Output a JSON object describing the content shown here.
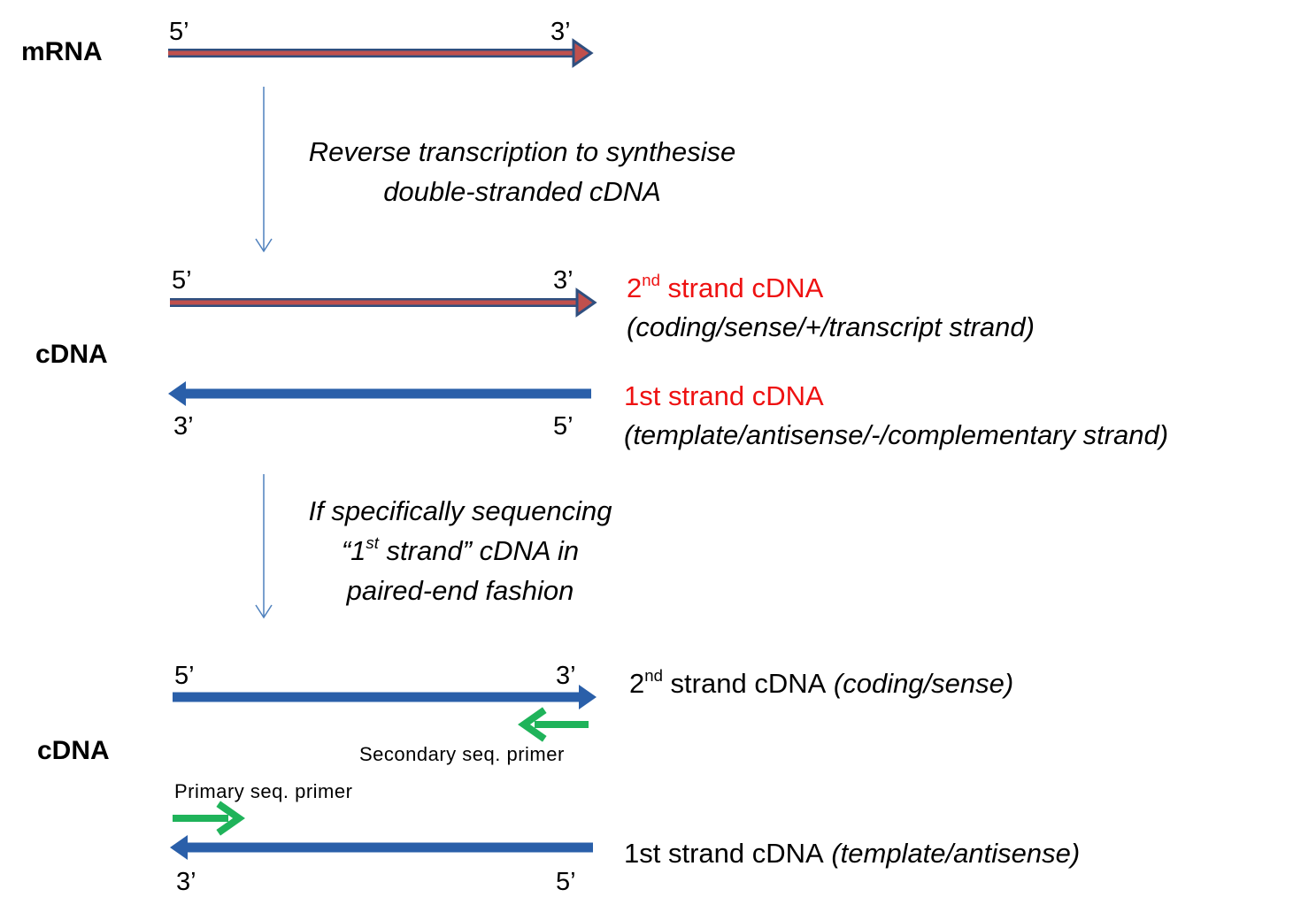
{
  "colors": {
    "strand_blue": "#2a5fa9",
    "strand_outline": "#2f4f7f",
    "mrna_red": "#c0504d",
    "step_arrow": "#4f81bd",
    "primer_green": "#1fb35a",
    "label_red": "#ee1111"
  },
  "labels": {
    "mrna": "mRNA",
    "cdna_1": "cDNA",
    "cdna_2": "cDNA"
  },
  "ends": {
    "five": "5’",
    "three": "3’"
  },
  "steps": {
    "step1_line1": "Reverse transcription to synthesise",
    "step1_line2": "double-stranded cDNA",
    "step2_line1": "If specifically sequencing",
    "step2_line2_pre": "“1",
    "step2_line2_sup": "st",
    "step2_line2_post": " strand” cDNA in",
    "step2_line3": "paired-end fashion"
  },
  "strands": {
    "second_num": "2",
    "second_sup": "nd",
    "second_text": " strand cDNA",
    "second_desc": "(coding/sense/+/transcript strand)",
    "first_text": "1st strand cDNA",
    "first_desc": "(template/antisense/-/complementary strand)",
    "second_desc_short": " (coding/sense)",
    "first_desc_short": " (template/antisense)"
  },
  "primers": {
    "secondary": "Secondary seq. primer",
    "primary": "Primary seq. primer"
  }
}
